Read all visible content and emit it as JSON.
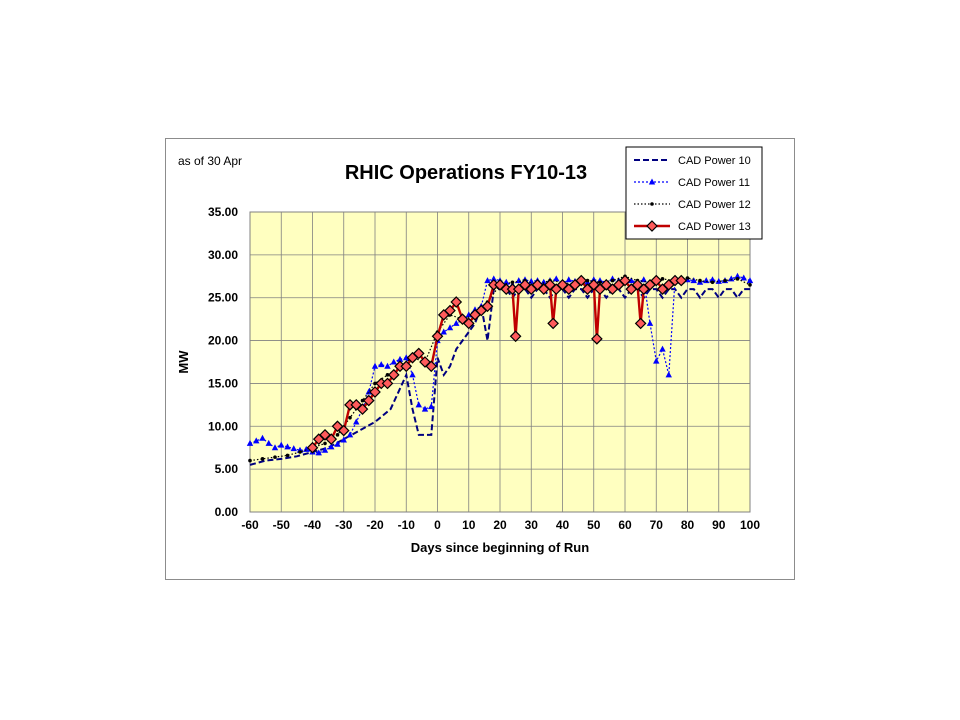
{
  "note": "as of 30 Apr",
  "chart_data": {
    "type": "line",
    "title": "RHIC Operations  FY10-13",
    "xlabel": "Days since beginning of Run",
    "ylabel": "MW",
    "xlim": [
      -60,
      100
    ],
    "ylim": [
      0,
      35
    ],
    "x_ticks": [
      "-60",
      "-50",
      "-40",
      "-30",
      "-20",
      "-10",
      "0",
      "10",
      "20",
      "30",
      "40",
      "50",
      "60",
      "70",
      "80",
      "90",
      "100"
    ],
    "y_ticks": [
      "0.00",
      "5.00",
      "10.00",
      "15.00",
      "20.00",
      "25.00",
      "30.00",
      "35.00"
    ],
    "grid": true,
    "legend_position": "top-right",
    "plot_background": "#ffffc0",
    "series": [
      {
        "name": "CAD Power 10",
        "color": "#000080",
        "style": "dashed",
        "x": [
          -60,
          -55,
          -50,
          -45,
          -40,
          -35,
          -30,
          -25,
          -20,
          -15,
          -10,
          -8,
          -6,
          -4,
          -2,
          0,
          2,
          4,
          6,
          8,
          10,
          12,
          14,
          16,
          18,
          20,
          22,
          24,
          26,
          28,
          30,
          32,
          34,
          36,
          38,
          40,
          42,
          44,
          46,
          48,
          50,
          52,
          54,
          56,
          58,
          60,
          62,
          64,
          66,
          68,
          70,
          72,
          74,
          76,
          78,
          80,
          82,
          84,
          86,
          88,
          90,
          92,
          94,
          96,
          98,
          100
        ],
        "y": [
          5.5,
          6,
          6.2,
          6.5,
          7,
          7.5,
          8.5,
          9.5,
          10.5,
          12,
          16,
          12,
          9,
          9,
          9,
          18,
          16,
          17,
          19,
          20,
          21,
          22,
          24,
          20,
          26,
          26,
          26,
          25,
          26,
          26,
          25,
          26,
          26,
          25,
          26,
          26,
          25,
          26,
          26,
          25,
          26,
          26,
          25,
          26,
          26,
          25,
          26,
          26,
          25,
          26,
          26,
          25,
          26,
          26,
          25,
          26,
          26,
          25,
          26,
          26,
          25,
          26,
          26,
          25,
          26,
          26
        ]
      },
      {
        "name": "CAD Power 11",
        "color": "#0000ff",
        "style": "dotted-triangle",
        "x": [
          -60,
          -58,
          -56,
          -54,
          -52,
          -50,
          -48,
          -46,
          -44,
          -42,
          -40,
          -38,
          -36,
          -34,
          -32,
          -30,
          -28,
          -26,
          -24,
          -22,
          -20,
          -18,
          -16,
          -14,
          -12,
          -10,
          -8,
          -6,
          -4,
          -2,
          0,
          2,
          4,
          6,
          8,
          10,
          12,
          14,
          16,
          18,
          20,
          22,
          24,
          26,
          28,
          30,
          32,
          34,
          36,
          38,
          40,
          42,
          44,
          46,
          48,
          50,
          52,
          54,
          56,
          58,
          60,
          62,
          64,
          66,
          68,
          70,
          72,
          74,
          76,
          78,
          80,
          82,
          84,
          86,
          88,
          90,
          92,
          94,
          96,
          98,
          100
        ],
        "y": [
          8,
          8.3,
          8.6,
          8,
          7.5,
          7.8,
          7.6,
          7.4,
          7.2,
          7.3,
          7,
          6.9,
          7.2,
          7.6,
          7.9,
          8.4,
          9,
          10.5,
          12,
          14,
          17,
          17.2,
          17,
          17.5,
          17.8,
          18,
          16,
          12.5,
          12,
          12.3,
          20,
          21,
          21.5,
          22,
          22.4,
          23,
          23.6,
          24,
          27,
          27.2,
          27,
          26.8,
          26.5,
          27,
          27.1,
          26.9,
          27,
          26.8,
          27,
          27.2,
          26.7,
          27.1,
          26.9,
          27,
          26.8,
          27.1,
          27,
          26.8,
          27.2,
          27,
          26.9,
          27,
          26.8,
          27.1,
          22,
          17.6,
          19,
          16,
          27,
          26.9,
          27.1,
          27,
          26.8,
          27,
          27.1,
          26.9,
          27,
          27.2,
          27.5,
          27.3,
          27
        ]
      },
      {
        "name": "CAD Power 12",
        "color": "#000000",
        "style": "dotted-point",
        "x": [
          -60,
          -56,
          -52,
          -48,
          -44,
          -40,
          -36,
          -32,
          -28,
          -24,
          -20,
          -16,
          -12,
          -8,
          -4,
          0,
          4,
          8,
          12,
          16,
          20,
          24,
          28,
          32,
          36,
          40,
          44,
          48,
          52,
          56,
          60,
          64,
          68,
          72,
          76,
          80,
          84,
          88,
          92,
          96,
          100
        ],
        "y": [
          6,
          6.2,
          6.4,
          6.6,
          7,
          7.5,
          8,
          9,
          11,
          13,
          15,
          16,
          17,
          18,
          17.5,
          21,
          23,
          22.5,
          23,
          24.5,
          26.5,
          26.8,
          27,
          26.5,
          27,
          26.8,
          26.5,
          27,
          26.8,
          27,
          27.5,
          27,
          26.8,
          27.2,
          27,
          27.3,
          27,
          26.8,
          27,
          27.2,
          26.5
        ]
      },
      {
        "name": "CAD Power 13",
        "color": "#c00000",
        "style": "solid-diamond",
        "x": [
          -40,
          -38,
          -36,
          -34,
          -32,
          -30,
          -28,
          -26,
          -24,
          -22,
          -20,
          -18,
          -16,
          -14,
          -12,
          -10,
          -8,
          -6,
          -4,
          -2,
          0,
          2,
          4,
          6,
          8,
          10,
          12,
          14,
          16,
          18,
          20,
          22,
          24,
          25,
          26,
          28,
          30,
          32,
          34,
          36,
          37,
          38,
          40,
          42,
          44,
          46,
          48,
          50,
          51,
          52,
          54,
          56,
          58,
          60,
          62,
          64,
          65,
          66,
          68,
          70,
          72,
          74,
          76,
          78
        ],
        "y": [
          7.5,
          8.5,
          9,
          8.5,
          10,
          9.5,
          12.5,
          12.5,
          12,
          13,
          14,
          15,
          15,
          16,
          17,
          17,
          18,
          18.5,
          17.5,
          17,
          20.5,
          23,
          23.5,
          24.5,
          22.5,
          22,
          23,
          23.5,
          24,
          26.5,
          26.5,
          26,
          26,
          20.5,
          26,
          26.5,
          26,
          26.5,
          26,
          26.5,
          22,
          26,
          26.5,
          26,
          26.5,
          27,
          26,
          26.5,
          20.2,
          26,
          26.5,
          26,
          26.5,
          27,
          26,
          26.5,
          22,
          26,
          26.5,
          27,
          26,
          26.5,
          27,
          27
        ]
      }
    ]
  }
}
